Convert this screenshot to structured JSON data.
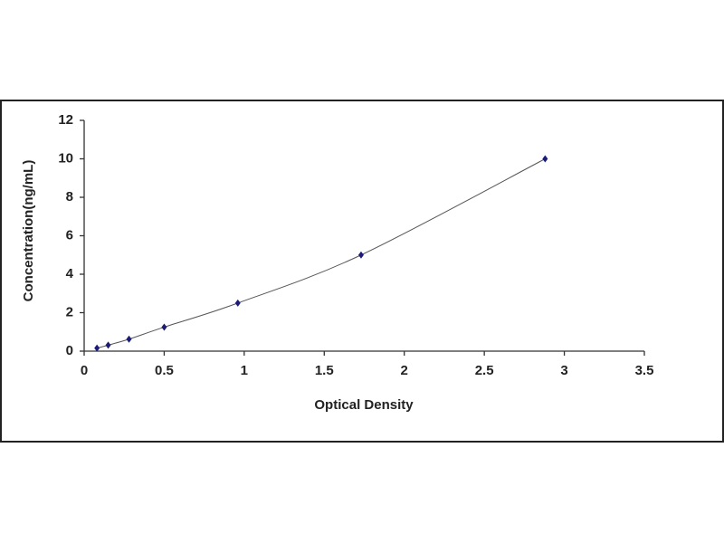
{
  "chart_data": {
    "type": "scatter",
    "x_label": "Optical Density",
    "y_label": "Concentration(ng/mL)",
    "x": [
      0.08,
      0.15,
      0.28,
      0.5,
      0.96,
      1.73,
      2.88
    ],
    "values": [
      0.156,
      0.312,
      0.625,
      1.25,
      2.5,
      5,
      10
    ],
    "color": "#1c1c78",
    "curve": true,
    "curve_color": "#555555",
    "xlim": [
      0,
      3.5
    ],
    "xticks": [
      0,
      0.5,
      1,
      1.5,
      2,
      2.5,
      3,
      3.5
    ],
    "ylim": [
      0,
      12
    ],
    "yticks": [
      0,
      2,
      4,
      6,
      8,
      10,
      12
    ]
  }
}
